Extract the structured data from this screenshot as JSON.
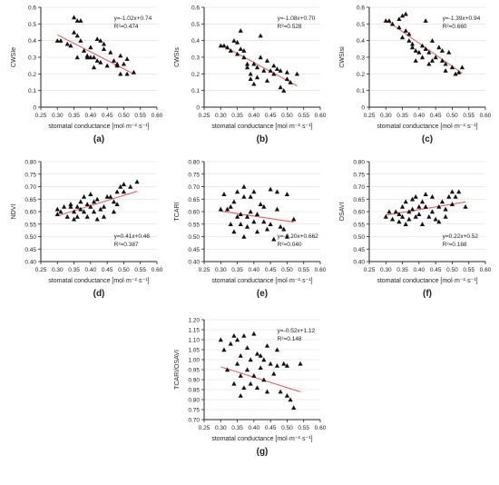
{
  "chart_data": [
    {
      "type": "scatter",
      "panel": "(a)",
      "ylabel": "CWSIe",
      "xlabel": "stomatal conductance [mol·m⁻²·s⁻¹]",
      "xlim": [
        0.25,
        0.6
      ],
      "ylim": [
        0.0,
        0.6
      ],
      "xticks": [
        "0.25",
        "0.30",
        "0.35",
        "0.40",
        "0.45",
        "0.50",
        "0.55",
        "0.60"
      ],
      "yticks": [
        "0",
        "0.1",
        "0.2",
        "0.3",
        "0.4",
        "0.5",
        "0.6"
      ],
      "equation": "y=-1.02x+0.74",
      "r2": "R²=0.474",
      "fit": {
        "slope": -1.02,
        "intercept": 0.74
      },
      "points": [
        [
          0.3,
          0.4
        ],
        [
          0.31,
          0.4
        ],
        [
          0.33,
          0.38
        ],
        [
          0.34,
          0.37
        ],
        [
          0.35,
          0.54
        ],
        [
          0.36,
          0.52
        ],
        [
          0.37,
          0.52
        ],
        [
          0.35,
          0.45
        ],
        [
          0.36,
          0.43
        ],
        [
          0.37,
          0.4
        ],
        [
          0.38,
          0.34
        ],
        [
          0.39,
          0.31
        ],
        [
          0.39,
          0.3
        ],
        [
          0.4,
          0.3
        ],
        [
          0.41,
          0.24
        ],
        [
          0.42,
          0.28
        ],
        [
          0.42,
          0.41
        ],
        [
          0.43,
          0.4
        ],
        [
          0.44,
          0.38
        ],
        [
          0.44,
          0.35
        ],
        [
          0.46,
          0.33
        ],
        [
          0.47,
          0.28
        ],
        [
          0.48,
          0.26
        ],
        [
          0.48,
          0.25
        ],
        [
          0.49,
          0.2
        ],
        [
          0.5,
          0.26
        ],
        [
          0.51,
          0.29
        ],
        [
          0.51,
          0.2
        ],
        [
          0.53,
          0.21
        ],
        [
          0.41,
          0.3
        ],
        [
          0.43,
          0.27
        ],
        [
          0.36,
          0.3
        ],
        [
          0.4,
          0.36
        ],
        [
          0.45,
          0.25
        ],
        [
          0.49,
          0.31
        ]
      ]
    },
    {
      "type": "scatter",
      "panel": "(b)",
      "ylabel": "CWSIs",
      "xlabel": "stomatal conductance [mol·m⁻²·s⁻¹]",
      "xlim": [
        0.25,
        0.6
      ],
      "ylim": [
        0.0,
        0.6
      ],
      "xticks": [
        "0.25",
        "0.30",
        "0.35",
        "0.40",
        "0.45",
        "0.50",
        "0.55",
        "0.60"
      ],
      "yticks": [
        "0",
        "0.1",
        "0.2",
        "0.3",
        "0.4",
        "0.5",
        "0.6"
      ],
      "equation": "y=-1.08x+0.70",
      "r2": "R²=0.528",
      "fit": {
        "slope": -1.08,
        "intercept": 0.7
      },
      "points": [
        [
          0.3,
          0.37
        ],
        [
          0.31,
          0.37
        ],
        [
          0.32,
          0.36
        ],
        [
          0.33,
          0.34
        ],
        [
          0.34,
          0.4
        ],
        [
          0.35,
          0.39
        ],
        [
          0.36,
          0.46
        ],
        [
          0.36,
          0.35
        ],
        [
          0.37,
          0.3
        ],
        [
          0.38,
          0.26
        ],
        [
          0.38,
          0.24
        ],
        [
          0.39,
          0.2
        ],
        [
          0.39,
          0.17
        ],
        [
          0.4,
          0.26
        ],
        [
          0.41,
          0.24
        ],
        [
          0.42,
          0.43
        ],
        [
          0.42,
          0.3
        ],
        [
          0.43,
          0.22
        ],
        [
          0.44,
          0.16
        ],
        [
          0.45,
          0.22
        ],
        [
          0.46,
          0.2
        ],
        [
          0.47,
          0.23
        ],
        [
          0.48,
          0.22
        ],
        [
          0.48,
          0.12
        ],
        [
          0.49,
          0.1
        ],
        [
          0.5,
          0.17
        ],
        [
          0.5,
          0.21
        ],
        [
          0.51,
          0.15
        ],
        [
          0.53,
          0.2
        ],
        [
          0.4,
          0.14
        ],
        [
          0.44,
          0.28
        ],
        [
          0.37,
          0.34
        ],
        [
          0.41,
          0.18
        ],
        [
          0.46,
          0.25
        ],
        [
          0.35,
          0.32
        ]
      ]
    },
    {
      "type": "scatter",
      "panel": "(c)",
      "ylabel": "CWSIsi",
      "xlabel": "stomatal conductance [mol·m⁻²·s⁻¹]",
      "xlim": [
        0.25,
        0.6
      ],
      "ylim": [
        0.0,
        0.6
      ],
      "xticks": [
        "0.25",
        "0.30",
        "0.35",
        "0.40",
        "0.45",
        "0.50",
        "0.55",
        "0.60"
      ],
      "yticks": [
        "0",
        "0.1",
        "0.2",
        "0.3",
        "0.4",
        "0.5",
        "0.6"
      ],
      "equation": "y=-1.39x+0.94",
      "r2": "R²=0.660",
      "fit": {
        "slope": -1.39,
        "intercept": 0.94
      },
      "points": [
        [
          0.3,
          0.52
        ],
        [
          0.31,
          0.52
        ],
        [
          0.32,
          0.5
        ],
        [
          0.34,
          0.48
        ],
        [
          0.34,
          0.53
        ],
        [
          0.35,
          0.55
        ],
        [
          0.36,
          0.56
        ],
        [
          0.36,
          0.46
        ],
        [
          0.37,
          0.44
        ],
        [
          0.37,
          0.4
        ],
        [
          0.38,
          0.38
        ],
        [
          0.38,
          0.36
        ],
        [
          0.39,
          0.34
        ],
        [
          0.4,
          0.33
        ],
        [
          0.41,
          0.3
        ],
        [
          0.41,
          0.37
        ],
        [
          0.42,
          0.35
        ],
        [
          0.42,
          0.52
        ],
        [
          0.43,
          0.33
        ],
        [
          0.44,
          0.28
        ],
        [
          0.45,
          0.3
        ],
        [
          0.46,
          0.36
        ],
        [
          0.47,
          0.28
        ],
        [
          0.48,
          0.26
        ],
        [
          0.48,
          0.22
        ],
        [
          0.49,
          0.33
        ],
        [
          0.5,
          0.24
        ],
        [
          0.51,
          0.2
        ],
        [
          0.52,
          0.21
        ],
        [
          0.53,
          0.24
        ],
        [
          0.44,
          0.4
        ],
        [
          0.39,
          0.28
        ],
        [
          0.43,
          0.26
        ],
        [
          0.47,
          0.34
        ],
        [
          0.35,
          0.42
        ]
      ]
    },
    {
      "type": "scatter",
      "panel": "(d)",
      "ylabel": "NDVI",
      "xlabel": "stomatal conductance [mol·m⁻²·s⁻¹]",
      "xlim": [
        0.25,
        0.6
      ],
      "ylim": [
        0.4,
        0.8
      ],
      "xticks": [
        "0.25",
        "0.30",
        "0.35",
        "0.40",
        "0.45",
        "0.50",
        "0.55",
        "0.60"
      ],
      "yticks": [
        "0.40",
        "0.45",
        "0.50",
        "0.55",
        "0.60",
        "0.65",
        "0.70",
        "0.75",
        "0.80"
      ],
      "equation": "y=0.41x+0.46",
      "r2": "R²=0.387",
      "fit": {
        "slope": 0.41,
        "intercept": 0.46
      },
      "points": [
        [
          0.3,
          0.59
        ],
        [
          0.3,
          0.61
        ],
        [
          0.31,
          0.6
        ],
        [
          0.32,
          0.62
        ],
        [
          0.33,
          0.58
        ],
        [
          0.34,
          0.62
        ],
        [
          0.34,
          0.63
        ],
        [
          0.35,
          0.57
        ],
        [
          0.35,
          0.6
        ],
        [
          0.36,
          0.58
        ],
        [
          0.36,
          0.62
        ],
        [
          0.37,
          0.61
        ],
        [
          0.37,
          0.64
        ],
        [
          0.38,
          0.6
        ],
        [
          0.38,
          0.66
        ],
        [
          0.39,
          0.58
        ],
        [
          0.39,
          0.63
        ],
        [
          0.4,
          0.62
        ],
        [
          0.4,
          0.67
        ],
        [
          0.41,
          0.6
        ],
        [
          0.41,
          0.64
        ],
        [
          0.42,
          0.57
        ],
        [
          0.42,
          0.65
        ],
        [
          0.43,
          0.61
        ],
        [
          0.44,
          0.62
        ],
        [
          0.45,
          0.66
        ],
        [
          0.46,
          0.66
        ],
        [
          0.47,
          0.64
        ],
        [
          0.48,
          0.63
        ],
        [
          0.48,
          0.68
        ],
        [
          0.49,
          0.7
        ],
        [
          0.5,
          0.68
        ],
        [
          0.5,
          0.71
        ],
        [
          0.52,
          0.7
        ],
        [
          0.54,
          0.72
        ],
        [
          0.47,
          0.6
        ],
        [
          0.44,
          0.58
        ]
      ]
    },
    {
      "type": "scatter",
      "panel": "(e)",
      "ylabel": "TCARI",
      "xlabel": "stomatal conductance [mol·m⁻²·s⁻¹]",
      "xlim": [
        0.25,
        0.6
      ],
      "ylim": [
        0.4,
        0.8
      ],
      "xticks": [
        "0.25",
        "0.30",
        "0.35",
        "0.40",
        "0.45",
        "0.50",
        "0.55",
        "0.60"
      ],
      "yticks": [
        "0.40",
        "0.45",
        "0.50",
        "0.55",
        "0.60",
        "0.65",
        "0.70",
        "0.75",
        "0.80"
      ],
      "equation": "y=-0.20x+0.662",
      "r2": "R²=0.040",
      "fit": {
        "slope": -0.2,
        "intercept": 0.662
      },
      "points": [
        [
          0.3,
          0.61
        ],
        [
          0.31,
          0.67
        ],
        [
          0.32,
          0.61
        ],
        [
          0.33,
          0.55
        ],
        [
          0.34,
          0.64
        ],
        [
          0.34,
          0.52
        ],
        [
          0.35,
          0.58
        ],
        [
          0.35,
          0.68
        ],
        [
          0.36,
          0.59
        ],
        [
          0.36,
          0.55
        ],
        [
          0.37,
          0.66
        ],
        [
          0.37,
          0.7
        ],
        [
          0.38,
          0.58
        ],
        [
          0.38,
          0.54
        ],
        [
          0.39,
          0.6
        ],
        [
          0.39,
          0.66
        ],
        [
          0.4,
          0.56
        ],
        [
          0.4,
          0.68
        ],
        [
          0.41,
          0.59
        ],
        [
          0.42,
          0.63
        ],
        [
          0.43,
          0.62
        ],
        [
          0.43,
          0.56
        ],
        [
          0.44,
          0.53
        ],
        [
          0.45,
          0.55
        ],
        [
          0.46,
          0.49
        ],
        [
          0.47,
          0.61
        ],
        [
          0.47,
          0.68
        ],
        [
          0.48,
          0.54
        ],
        [
          0.49,
          0.53
        ],
        [
          0.5,
          0.67
        ],
        [
          0.5,
          0.5
        ],
        [
          0.52,
          0.57
        ],
        [
          0.45,
          0.69
        ],
        [
          0.41,
          0.52
        ],
        [
          0.37,
          0.5
        ],
        [
          0.33,
          0.62
        ]
      ]
    },
    {
      "type": "scatter",
      "panel": "(f)",
      "ylabel": "OSAVI",
      "xlabel": "stomatal conductance [mol·m⁻²·s⁻¹]",
      "xlim": [
        0.25,
        0.6
      ],
      "ylim": [
        0.4,
        0.8
      ],
      "xticks": [
        "0.25",
        "0.30",
        "0.35",
        "0.40",
        "0.45",
        "0.50",
        "0.55",
        "0.60"
      ],
      "yticks": [
        "0.40",
        "0.45",
        "0.50",
        "0.55",
        "0.60",
        "0.65",
        "0.70",
        "0.75",
        "0.80"
      ],
      "equation": "y=0.22x+0.52",
      "r2": "R²=0.168",
      "fit": {
        "slope": 0.22,
        "intercept": 0.52
      },
      "points": [
        [
          0.3,
          0.58
        ],
        [
          0.31,
          0.6
        ],
        [
          0.32,
          0.57
        ],
        [
          0.33,
          0.6
        ],
        [
          0.34,
          0.59
        ],
        [
          0.34,
          0.56
        ],
        [
          0.35,
          0.62
        ],
        [
          0.35,
          0.58
        ],
        [
          0.36,
          0.55
        ],
        [
          0.36,
          0.64
        ],
        [
          0.37,
          0.6
        ],
        [
          0.37,
          0.57
        ],
        [
          0.38,
          0.65
        ],
        [
          0.38,
          0.61
        ],
        [
          0.39,
          0.58
        ],
        [
          0.39,
          0.66
        ],
        [
          0.4,
          0.59
        ],
        [
          0.4,
          0.62
        ],
        [
          0.41,
          0.64
        ],
        [
          0.41,
          0.55
        ],
        [
          0.42,
          0.62
        ],
        [
          0.43,
          0.58
        ],
        [
          0.44,
          0.66
        ],
        [
          0.44,
          0.6
        ],
        [
          0.45,
          0.57
        ],
        [
          0.46,
          0.62
        ],
        [
          0.47,
          0.64
        ],
        [
          0.48,
          0.61
        ],
        [
          0.48,
          0.58
        ],
        [
          0.49,
          0.66
        ],
        [
          0.5,
          0.63
        ],
        [
          0.5,
          0.68
        ],
        [
          0.51,
          0.66
        ],
        [
          0.52,
          0.68
        ],
        [
          0.54,
          0.62
        ],
        [
          0.46,
          0.56
        ],
        [
          0.42,
          0.67
        ]
      ]
    },
    {
      "type": "scatter",
      "panel": "(g)",
      "ylabel": "TCARI/OSAVI",
      "xlabel": "stomatal conductance [mol·m⁻²·s⁻¹]",
      "xlim": [
        0.25,
        0.6
      ],
      "ylim": [
        0.7,
        1.2
      ],
      "xticks": [
        "0.25",
        "0.30",
        "0.35",
        "0.40",
        "0.45",
        "0.50",
        "0.55",
        "0.60"
      ],
      "yticks": [
        "0.70",
        "0.75",
        "0.80",
        "0.85",
        "0.90",
        "0.95",
        "1.00",
        "1.05",
        "1.10",
        "1.15",
        "1.20"
      ],
      "equation": "y=-0.52x+1.12",
      "r2": "R²=0.148",
      "fit": {
        "slope": -0.52,
        "intercept": 1.12
      },
      "points": [
        [
          0.3,
          1.1
        ],
        [
          0.31,
          1.05
        ],
        [
          0.32,
          0.95
        ],
        [
          0.33,
          1.08
        ],
        [
          0.34,
          1.12
        ],
        [
          0.34,
          0.88
        ],
        [
          0.35,
          1.1
        ],
        [
          0.35,
          0.98
        ],
        [
          0.36,
          0.92
        ],
        [
          0.36,
          1.02
        ],
        [
          0.37,
          0.86
        ],
        [
          0.37,
          1.12
        ],
        [
          0.38,
          0.95
        ],
        [
          0.38,
          1.06
        ],
        [
          0.39,
          0.88
        ],
        [
          0.39,
          1.0
        ],
        [
          0.4,
          1.13
        ],
        [
          0.4,
          0.92
        ],
        [
          0.41,
          1.03
        ],
        [
          0.41,
          0.86
        ],
        [
          0.42,
          0.96
        ],
        [
          0.43,
          1.0
        ],
        [
          0.43,
          0.9
        ],
        [
          0.44,
          0.84
        ],
        [
          0.45,
          0.98
        ],
        [
          0.46,
          0.93
        ],
        [
          0.47,
          1.05
        ],
        [
          0.47,
          0.97
        ],
        [
          0.48,
          0.84
        ],
        [
          0.49,
          0.98
        ],
        [
          0.5,
          0.82
        ],
        [
          0.5,
          0.97
        ],
        [
          0.51,
          0.8
        ],
        [
          0.52,
          0.76
        ],
        [
          0.54,
          0.98
        ],
        [
          0.44,
          1.07
        ],
        [
          0.36,
          0.82
        ],
        [
          0.42,
          1.02
        ]
      ]
    }
  ],
  "colors": {
    "axis": "#222222",
    "grid": "#d9d9d9",
    "marker": "#111111",
    "fit": "#e8534a",
    "text": "#222222"
  }
}
